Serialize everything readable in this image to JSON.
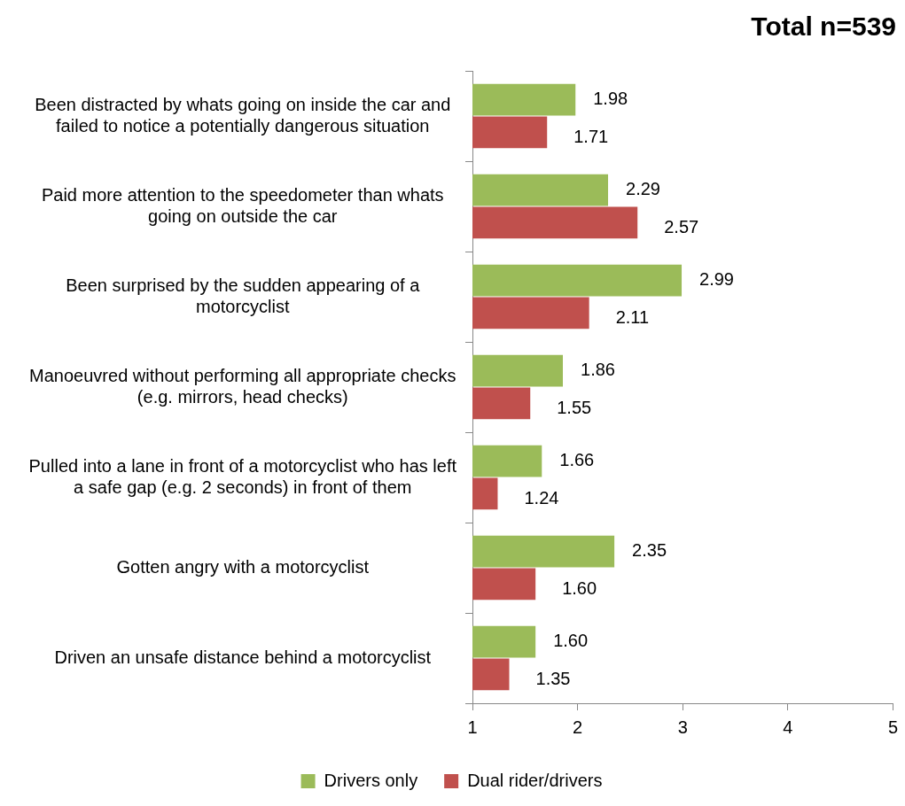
{
  "chart_data": {
    "type": "bar",
    "orientation": "horizontal",
    "title": "Total n=539",
    "categories": [
      "Been distracted by whats going on inside the car and failed to notice a potentially dangerous situation",
      "Paid more attention to the speedometer than whats going on outside the car",
      "Been surprised by the sudden appearing of a motorcyclist",
      "Manoeuvred without performing all appropriate checks (e.g. mirrors, head checks)",
      "Pulled into a lane in front of a motorcyclist who has left a safe gap (e.g. 2 seconds) in front of them",
      "Gotten angry with a motorcyclist",
      "Driven an unsafe distance behind a motorcyclist"
    ],
    "series": [
      {
        "name": "Drivers only",
        "color": "#9bbb59",
        "values": [
          1.98,
          2.29,
          2.99,
          1.86,
          1.66,
          2.35,
          1.6
        ],
        "value_labels": [
          "1.98",
          "2.29",
          "2.99",
          "1.86",
          "1.66",
          "2.35",
          "1.60"
        ]
      },
      {
        "name": "Dual rider/drivers",
        "color": "#c0504d",
        "values": [
          1.71,
          2.57,
          2.11,
          1.55,
          1.24,
          1.6,
          1.35
        ],
        "value_labels": [
          "1.71",
          "2.57",
          "2.11",
          "1.55",
          "1.24",
          "1.60",
          "1.35"
        ]
      }
    ],
    "xlim": [
      1,
      5
    ],
    "xticks": [
      1,
      2,
      3,
      4,
      5
    ],
    "grid": false,
    "legend": "bottom"
  }
}
